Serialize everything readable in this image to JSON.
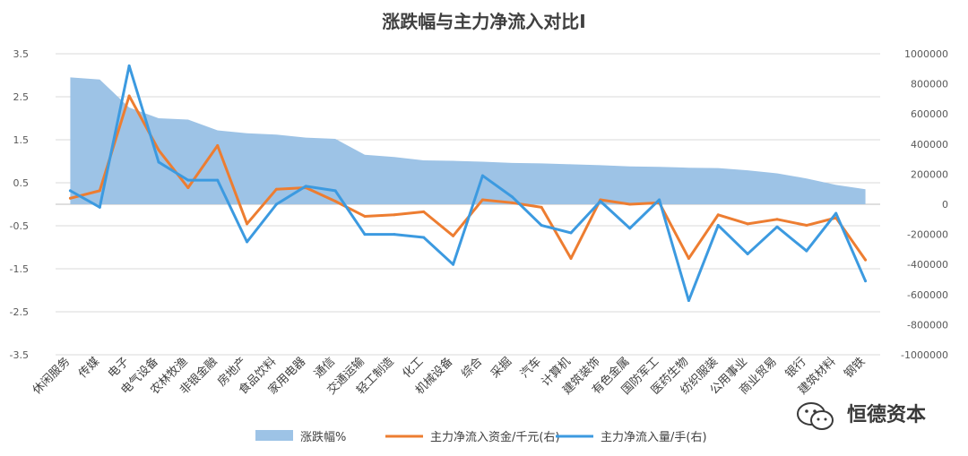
{
  "chart_data": {
    "type": "line",
    "title": "涨跌幅与主力净流入对比I",
    "categories": [
      "休闲服务",
      "传媒",
      "电子",
      "电气设备",
      "农林牧渔",
      "非银金融",
      "房地产",
      "食品饮料",
      "家用电器",
      "通信",
      "交通运输",
      "轻工制造",
      "化工",
      "机械设备",
      "综合",
      "采掘",
      "汽车",
      "计算机",
      "建筑装饰",
      "有色金属",
      "国防军工",
      "医药生物",
      "纺织服装",
      "公用事业",
      "商业贸易",
      "银行",
      "建筑材料",
      "钢铁"
    ],
    "y_left": {
      "ylim": [
        -3.5,
        3.5
      ],
      "ticks": [
        "3.5",
        "2.5",
        "1.5",
        "0.5",
        "-0.5",
        "-1.5",
        "-2.5",
        "-3.5"
      ]
    },
    "y_right": {
      "ylim": [
        -1000000,
        1000000
      ],
      "ticks": [
        "1000000",
        "800000",
        "600000",
        "400000",
        "200000",
        "0",
        "-200000",
        "-400000",
        "-600000",
        "-800000",
        "-1000000"
      ]
    },
    "series": [
      {
        "name": "涨跌幅%",
        "kind": "area",
        "axis": "left",
        "color": "#9DC3E6",
        "values": [
          2.95,
          2.9,
          2.25,
          2.0,
          1.97,
          1.72,
          1.65,
          1.62,
          1.55,
          1.52,
          1.15,
          1.1,
          1.02,
          1.01,
          0.99,
          0.96,
          0.95,
          0.93,
          0.91,
          0.88,
          0.87,
          0.85,
          0.84,
          0.79,
          0.72,
          0.6,
          0.45,
          0.35
        ]
      },
      {
        "name": "主力净流入资金/千元(右)",
        "kind": "line",
        "axis": "right",
        "color": "#ED7D31",
        "values": [
          40000,
          90000,
          720000,
          360000,
          110000,
          390000,
          -130000,
          100000,
          110000,
          20000,
          -80000,
          -70000,
          -50000,
          -210000,
          30000,
          10000,
          -20000,
          -360000,
          30000,
          0,
          10000,
          -360000,
          -70000,
          -130000,
          -100000,
          -140000,
          -90000,
          -370000
        ]
      },
      {
        "name": "主力净流入量/手(右)",
        "kind": "line",
        "axis": "right",
        "color": "#3C9AE0",
        "values": [
          90000,
          -20000,
          920000,
          280000,
          160000,
          160000,
          -250000,
          0,
          120000,
          90000,
          -200000,
          -200000,
          -220000,
          -400000,
          190000,
          50000,
          -140000,
          -190000,
          20000,
          -160000,
          30000,
          -640000,
          -140000,
          -330000,
          -150000,
          -310000,
          -60000,
          -510000
        ]
      }
    ],
    "grid": true,
    "legend": "bottom"
  },
  "watermark": {
    "text": "恒德资本",
    "icon": "wechat-icon"
  }
}
